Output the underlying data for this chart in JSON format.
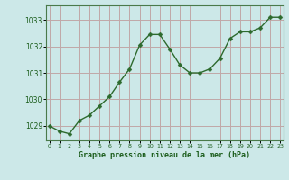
{
  "x": [
    0,
    1,
    2,
    3,
    4,
    5,
    6,
    7,
    8,
    9,
    10,
    11,
    12,
    13,
    14,
    15,
    16,
    17,
    18,
    19,
    20,
    21,
    22,
    23
  ],
  "y": [
    1029.0,
    1028.8,
    1028.7,
    1029.2,
    1029.4,
    1029.75,
    1030.1,
    1030.65,
    1031.15,
    1032.05,
    1032.45,
    1032.45,
    1031.9,
    1031.3,
    1031.0,
    1031.0,
    1031.15,
    1031.55,
    1032.3,
    1032.55,
    1032.55,
    1032.7,
    1033.1,
    1033.1
  ],
  "line_color": "#2d6a2d",
  "marker_color": "#2d6a2d",
  "bg_color": "#cce8e8",
  "grid_color": "#c0a8a8",
  "title": "Graphe pression niveau de la mer (hPa)",
  "yticks": [
    1029,
    1030,
    1031,
    1032,
    1033
  ],
  "xticks": [
    0,
    1,
    2,
    3,
    4,
    5,
    6,
    7,
    8,
    9,
    10,
    11,
    12,
    13,
    14,
    15,
    16,
    17,
    18,
    19,
    20,
    21,
    22,
    23
  ],
  "ylim": [
    1028.45,
    1033.55
  ],
  "xlim": [
    -0.3,
    23.3
  ],
  "tick_label_color": "#1a5c1a",
  "title_color": "#1a5c1a",
  "border_color": "#4a7a4a"
}
